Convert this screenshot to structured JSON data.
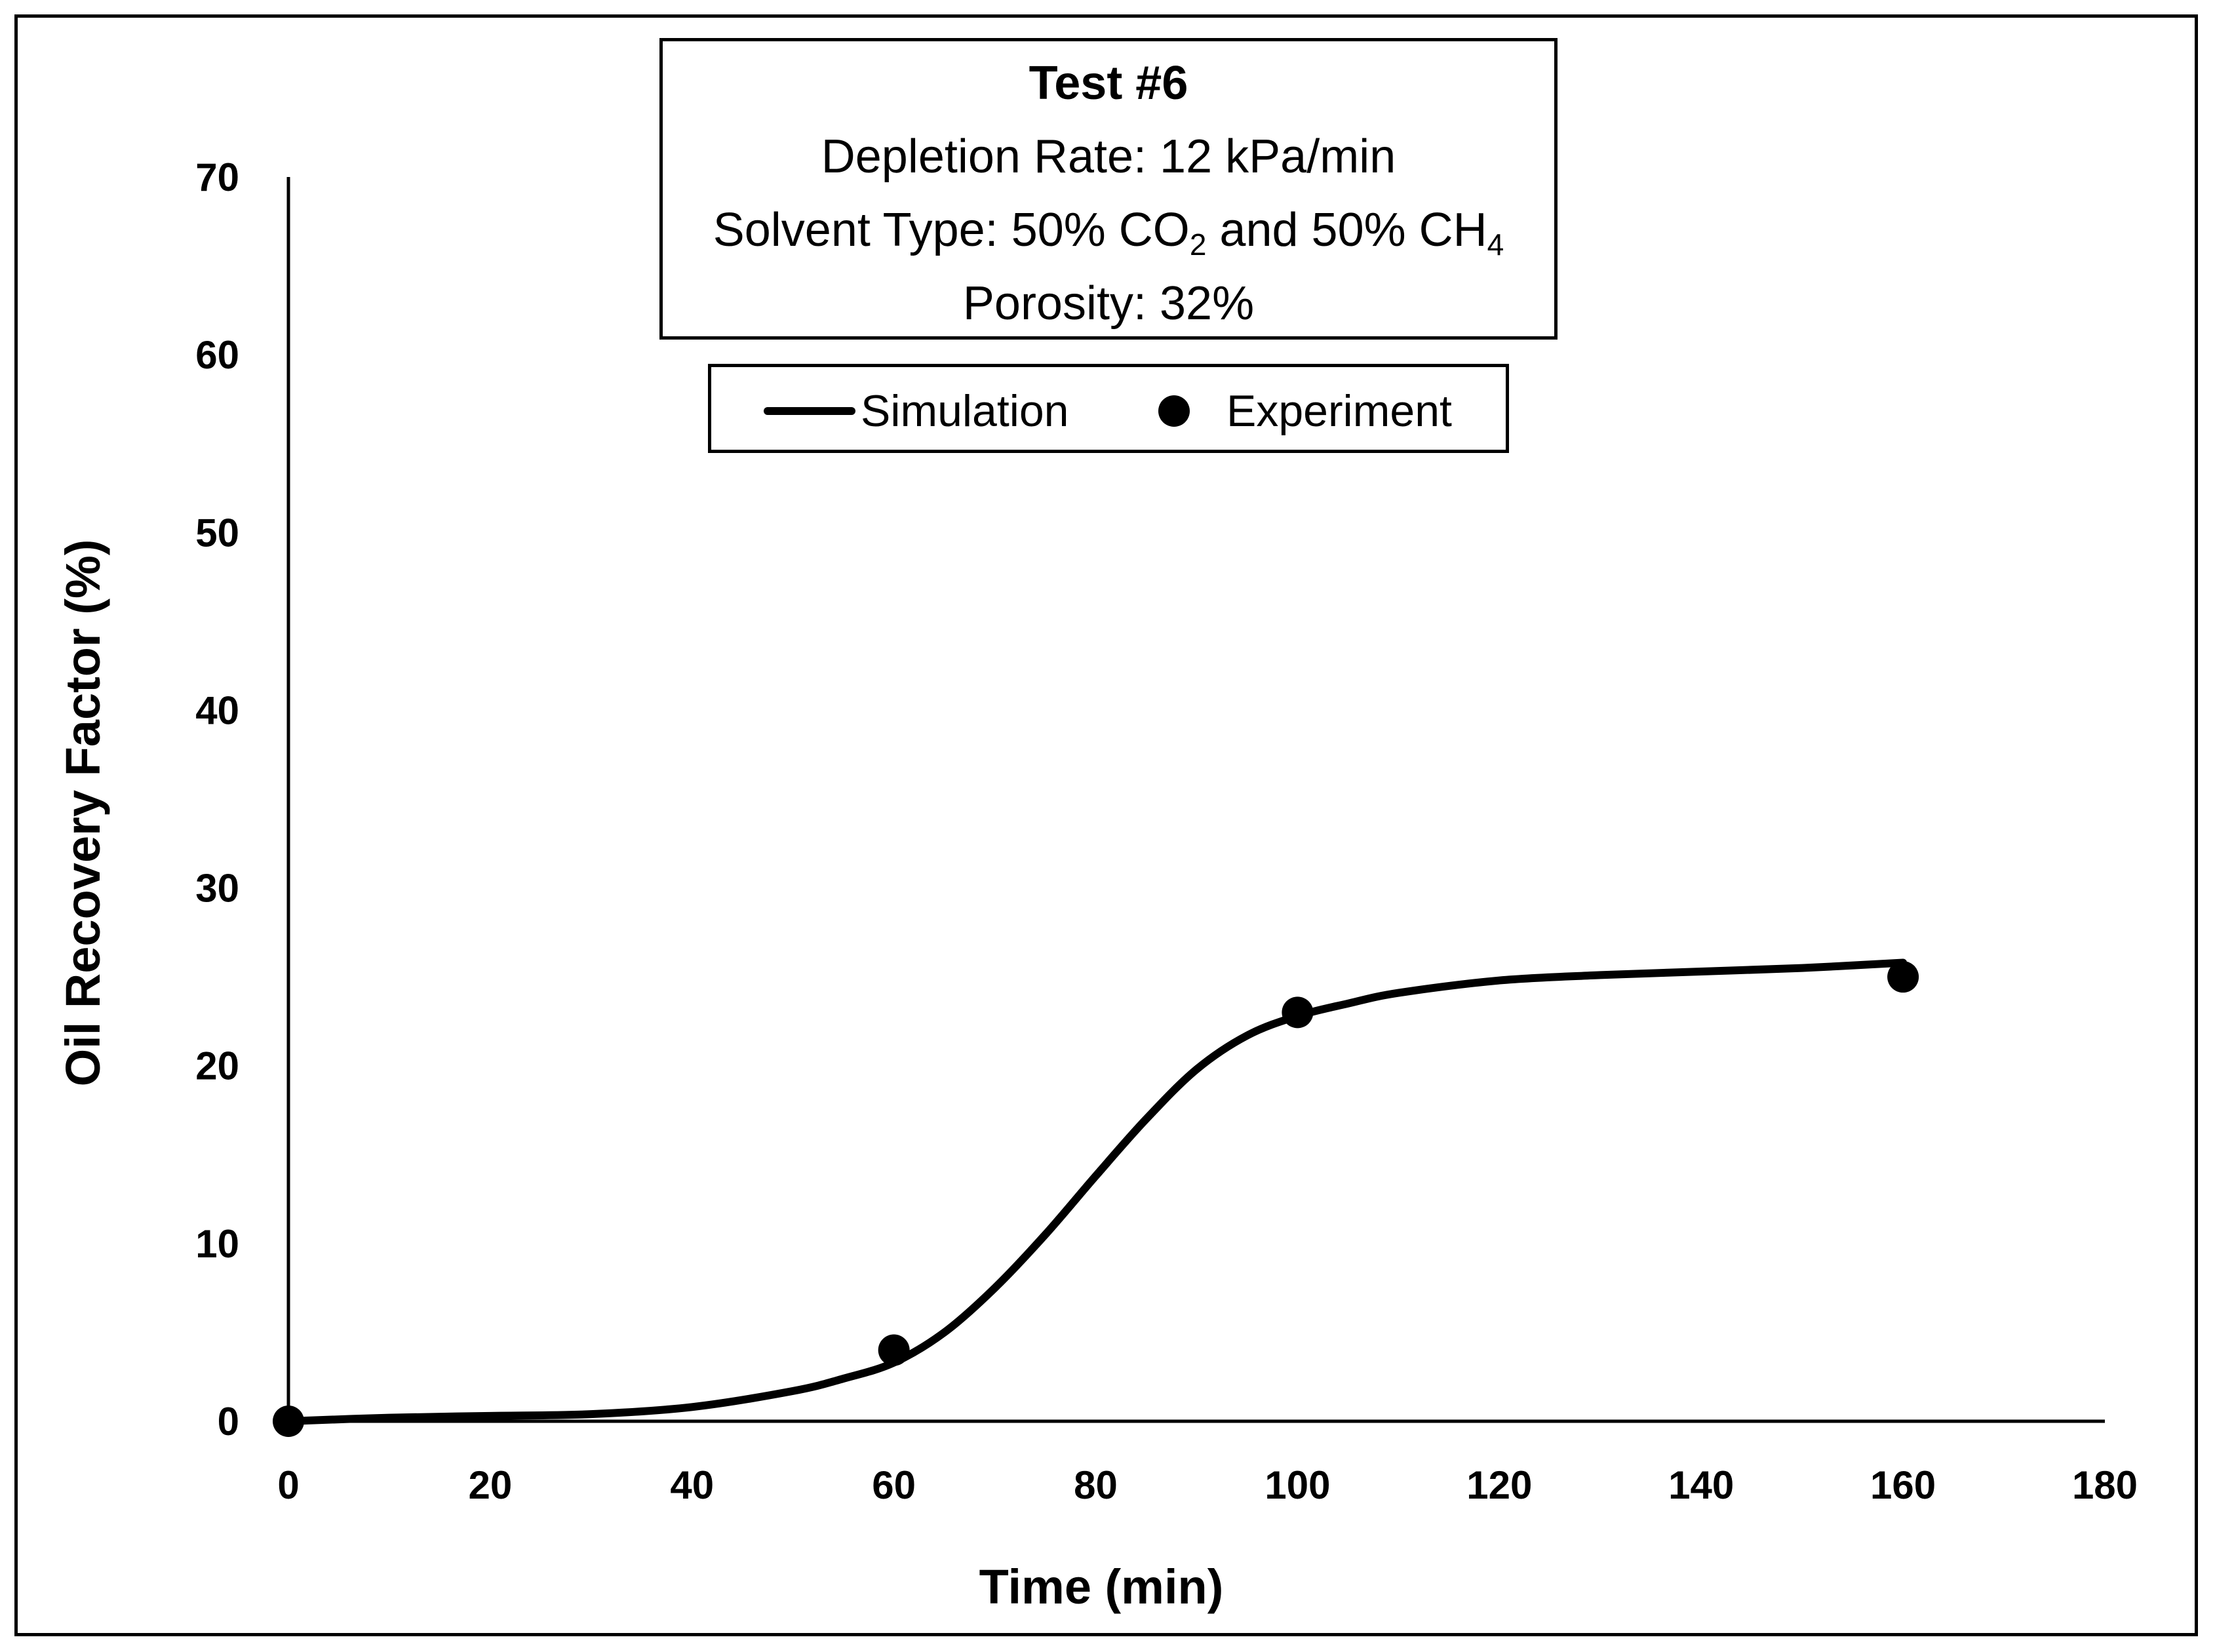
{
  "chart_data": {
    "type": "line",
    "title": "Test #6",
    "annotations": {
      "depletion_rate": "Depletion Rate: 12 kPa/min",
      "solvent_prefix": "Solvent Type: 50% CO",
      "solvent_sub1": "2",
      "solvent_mid": " and 50% CH",
      "solvent_sub2": "4",
      "porosity": "Porosity: 32%"
    },
    "xlabel": "Time (min)",
    "ylabel": "Oil Recovery Factor (%)",
    "xlim": [
      0,
      180
    ],
    "ylim": [
      0,
      70
    ],
    "xticks": [
      0,
      20,
      40,
      60,
      80,
      100,
      120,
      140,
      160,
      180
    ],
    "yticks": [
      0,
      10,
      20,
      30,
      40,
      50,
      60,
      70
    ],
    "grid": false,
    "legend": {
      "position": "top-center",
      "entries": [
        "Simulation",
        "Experiment"
      ]
    },
    "series": [
      {
        "name": "Simulation",
        "style": "line",
        "color": "#000000",
        "x": [
          0,
          10,
          20,
          30,
          40,
          50,
          55,
          60,
          65,
          70,
          75,
          80,
          85,
          90,
          95,
          100,
          105,
          110,
          120,
          130,
          140,
          150,
          160
        ],
        "y": [
          0,
          0.2,
          0.3,
          0.4,
          0.8,
          1.7,
          2.4,
          3.3,
          5.0,
          7.5,
          10.5,
          13.8,
          17.0,
          19.8,
          21.7,
          22.8,
          23.5,
          24.1,
          24.8,
          25.1,
          25.3,
          25.5,
          25.8
        ]
      },
      {
        "name": "Experiment",
        "style": "scatter",
        "color": "#000000",
        "x": [
          0,
          60,
          100,
          160
        ],
        "y": [
          0,
          4,
          23,
          25
        ]
      }
    ]
  }
}
